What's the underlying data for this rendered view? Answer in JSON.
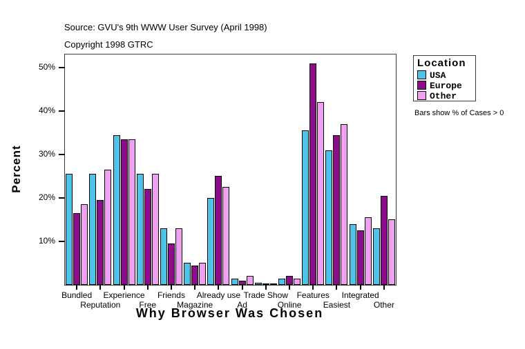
{
  "header": {
    "source_line": "Source: GVU's 9th WWW User Survey (April 1998)",
    "copyright_line": "Copyright 1998 GTRC"
  },
  "note": "Bars show % of Cases > 0",
  "legend": {
    "title": "Location",
    "entries": [
      {
        "label": "USA",
        "color": "#4EC3E9"
      },
      {
        "label": "Europe",
        "color": "#8C0D8C"
      },
      {
        "label": "Other",
        "color": "#F0A0F0"
      }
    ]
  },
  "chart_data": {
    "type": "bar",
    "title": "",
    "xlabel": "Why Browser Was Chosen",
    "ylabel": "Percent",
    "ylim": [
      0,
      53
    ],
    "yticks": [
      10,
      20,
      30,
      40,
      50
    ],
    "ytick_labels": [
      "10%",
      "20%",
      "30%",
      "40%",
      "50%"
    ],
    "grid": false,
    "legend_position": "right",
    "categories": [
      "Bundled",
      "Reputation",
      "Experience",
      "Free",
      "Friends",
      "Magazine",
      "Already use",
      "Ad",
      "Trade Show",
      "Online",
      "Features",
      "Easiest",
      "Integrated",
      "Other"
    ],
    "series": [
      {
        "name": "USA",
        "color": "#4EC3E9",
        "values": [
          25.5,
          25.5,
          34.5,
          25.5,
          13,
          5,
          20,
          1.5,
          0.5,
          1.5,
          35.5,
          31,
          14,
          13
        ]
      },
      {
        "name": "Europe",
        "color": "#8C0D8C",
        "values": [
          16.5,
          19.5,
          33.5,
          22,
          9.5,
          4.5,
          25,
          1,
          0.3,
          2,
          51,
          34.5,
          12.5,
          20.5
        ]
      },
      {
        "name": "Other",
        "color": "#F0A0F0",
        "values": [
          18.5,
          26.5,
          33.5,
          25.5,
          13,
          5,
          22.5,
          2,
          0.3,
          1.5,
          42,
          37,
          15.5,
          15
        ]
      }
    ]
  }
}
